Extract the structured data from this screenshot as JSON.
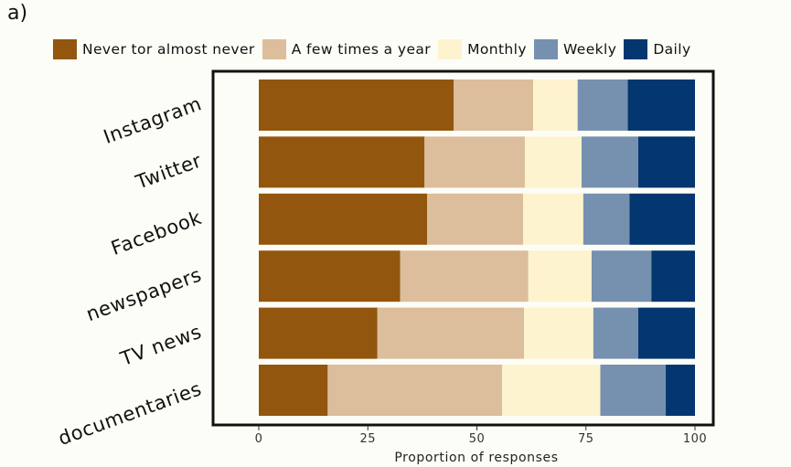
{
  "panel_label": "a)",
  "colors": {
    "series": [
      "#92560e",
      "#dcbe9c",
      "#fdf3cf",
      "#7690b0",
      "#04366f"
    ],
    "frame": "#111111",
    "background": "#fdfdf7"
  },
  "chart_data": {
    "type": "bar",
    "orientation": "horizontal",
    "stacked": true,
    "categories": [
      "Instagram",
      "Twitter",
      "Facebook",
      "newspapers",
      "TV news",
      "documentaries"
    ],
    "series": [
      {
        "name": "Never tor almost never",
        "values": [
          44.7,
          38,
          38.6,
          32.4,
          27.2,
          15.8
        ]
      },
      {
        "name": "A few times a year",
        "values": [
          18.2,
          23,
          22,
          29.4,
          33.6,
          40
        ]
      },
      {
        "name": "Monthly",
        "values": [
          10.2,
          13,
          13.8,
          14.5,
          15.9,
          22.5
        ]
      },
      {
        "name": "Weekly",
        "values": [
          11.5,
          13,
          10.6,
          13.7,
          10.3,
          15
        ]
      },
      {
        "name": "Daily",
        "values": [
          15.4,
          13,
          15,
          10,
          13,
          6.7
        ]
      }
    ],
    "xlabel": "Proportion of responses",
    "xticks": [
      "0",
      "25",
      "50",
      "75",
      "100"
    ],
    "xlim": [
      -10,
      108
    ],
    "grid": false,
    "legend_position": "top"
  }
}
